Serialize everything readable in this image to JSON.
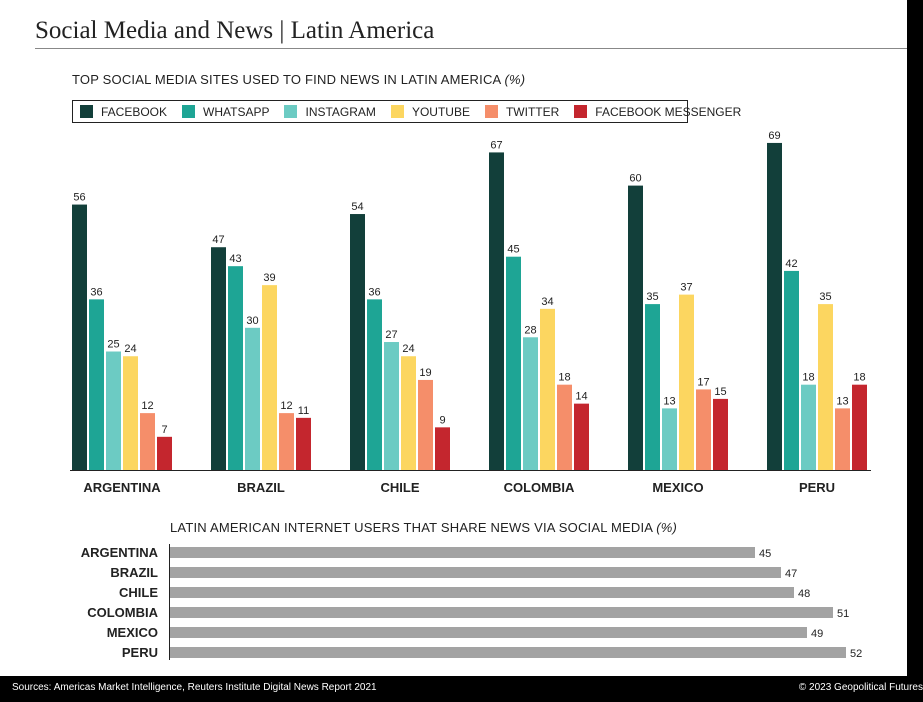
{
  "title": "Social Media and News | Latin America",
  "source": "Sources: Americas Market Intelligence, Reuters Institute Digital News Report 2021",
  "copyright": "© 2023 Geopolitical Futures",
  "colors": {
    "facebook": "#123f3a",
    "whatsapp": "#1ea595",
    "instagram": "#6ccbc3",
    "youtube": "#fcd660",
    "twitter": "#f58e6a",
    "messenger": "#c4262e",
    "hbar": "#a3a3a3"
  },
  "chart_data": [
    {
      "type": "bar",
      "title": "TOP SOCIAL MEDIA SITES USED TO FIND NEWS IN LATIN AMERICA",
      "unit": "(%)",
      "categories": [
        "ARGENTINA",
        "BRAZIL",
        "CHILE",
        "COLOMBIA",
        "MEXICO",
        "PERU"
      ],
      "legend_position": "top-left",
      "grid": false,
      "ylim": [
        0,
        70
      ],
      "series": [
        {
          "name": "FACEBOOK",
          "color": "#123f3a",
          "values": [
            56,
            47,
            54,
            67,
            60,
            69
          ]
        },
        {
          "name": "WHATSAPP",
          "color": "#1ea595",
          "values": [
            36,
            43,
            36,
            45,
            35,
            42
          ]
        },
        {
          "name": "INSTAGRAM",
          "color": "#6ccbc3",
          "values": [
            25,
            30,
            27,
            28,
            13,
            18
          ]
        },
        {
          "name": "YOUTUBE",
          "color": "#fcd660",
          "values": [
            24,
            39,
            24,
            34,
            37,
            35
          ]
        },
        {
          "name": "TWITTER",
          "color": "#f58e6a",
          "values": [
            12,
            12,
            19,
            18,
            17,
            13
          ]
        },
        {
          "name": "FACEBOOK MESSENGER",
          "color": "#c4262e",
          "values": [
            7,
            11,
            9,
            14,
            15,
            18
          ]
        }
      ]
    },
    {
      "type": "bar",
      "orientation": "horizontal",
      "title": "LATIN AMERICAN INTERNET USERS THAT SHARE NEWS VIA SOCIAL MEDIA",
      "unit": "(%)",
      "grid": false,
      "categories": [
        "ARGENTINA",
        "BRAZIL",
        "CHILE",
        "COLOMBIA",
        "MEXICO",
        "PERU"
      ],
      "values": [
        45,
        47,
        48,
        51,
        49,
        52
      ]
    }
  ]
}
